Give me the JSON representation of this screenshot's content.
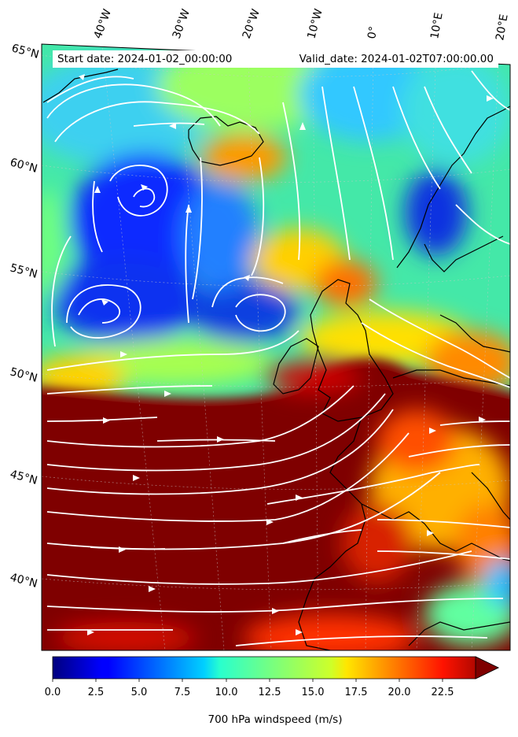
{
  "header": {
    "start_date": "Start date: 2024-01-02_00:00:00",
    "valid_date": "Valid_date: 2024-01-02T07:00:00.00"
  },
  "map": {
    "projection": "conic",
    "longitude_labels": [
      "40°W",
      "30°W",
      "20°W",
      "10°W",
      "0°",
      "10°E",
      "20°E"
    ],
    "latitude_labels": [
      "65°N",
      "60°N",
      "55°N",
      "50°N",
      "45°N",
      "40°N"
    ],
    "field": "700 hPa windspeed",
    "overlays": [
      "wind-streamlines",
      "coastlines",
      "graticule"
    ]
  },
  "colorbar": {
    "colormap": "jet",
    "vmin": 0.0,
    "vmax": 25.0,
    "extend": "max",
    "ticks": [
      "0.0",
      "2.5",
      "5.0",
      "7.5",
      "10.0",
      "12.5",
      "15.0",
      "17.5",
      "20.0",
      "22.5"
    ],
    "label": "700 hPa windspeed (m/s)"
  }
}
